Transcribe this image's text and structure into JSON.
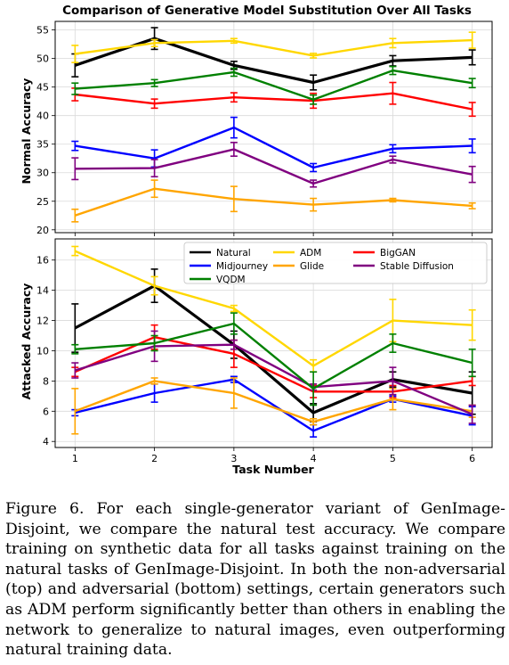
{
  "figure": {
    "title": "Comparison of Generative Model Substitution Over All Tasks",
    "caption": "Figure 6. For each single-generator variant of GenImage-Disjoint, we compare the natural test accuracy. We compare training on synthetic data for all tasks against training on the natural tasks of GenImage-Disjoint. In both the non-adversarial (top) and adversarial (bottom) settings, certain generators such as ADM perform significantly better than others in enabling the network to generalize to natural images, even outperforming natural training data."
  },
  "chart_data": [
    {
      "type": "line",
      "title": "Comparison of Generative Model Substitution Over All Tasks",
      "xlabel": "",
      "ylabel": "Normal Accuracy",
      "x": [
        1,
        2,
        3,
        4,
        5,
        6
      ],
      "xlim": [
        0.75,
        6.25
      ],
      "ylim": [
        19.5,
        56.5
      ],
      "yticks": [
        20,
        25,
        30,
        35,
        40,
        45,
        50,
        55
      ],
      "grid": true,
      "series": [
        {
          "name": "Natural",
          "color": "#000000",
          "values": [
            48.8,
            53.5,
            48.8,
            45.8,
            49.6,
            50.2
          ],
          "err": [
            2.0,
            1.9,
            0.7,
            1.3,
            0.9,
            1.3
          ]
        },
        {
          "name": "ADM",
          "color": "#ffd700",
          "values": [
            50.8,
            52.7,
            53.1,
            50.5,
            52.7,
            53.2
          ],
          "err": [
            1.5,
            0.6,
            0.4,
            0.4,
            0.8,
            1.4
          ]
        },
        {
          "name": "BigGAN",
          "color": "#ff0000",
          "values": [
            43.7,
            42.1,
            43.2,
            42.6,
            43.9,
            41.1
          ],
          "err": [
            1.1,
            0.8,
            0.8,
            1.3,
            1.9,
            1.2
          ]
        },
        {
          "name": "Midjourney",
          "color": "#0000ff",
          "values": [
            34.7,
            32.5,
            37.9,
            30.9,
            34.2,
            34.7
          ],
          "err": [
            0.8,
            1.5,
            1.8,
            0.7,
            0.7,
            1.2
          ]
        },
        {
          "name": "Glide",
          "color": "#ffa500",
          "values": [
            22.5,
            27.2,
            25.4,
            24.4,
            25.2,
            24.2
          ],
          "err": [
            1.1,
            1.5,
            2.2,
            1.1,
            0.3,
            0.5
          ]
        },
        {
          "name": "Stable Diffusion",
          "color": "#800080",
          "values": [
            30.7,
            30.8,
            34.1,
            28.1,
            32.3,
            29.7
          ],
          "err": [
            1.9,
            1.5,
            1.2,
            0.6,
            0.6,
            1.4
          ]
        },
        {
          "name": "VQDM",
          "color": "#008000",
          "values": [
            44.7,
            45.7,
            47.6,
            42.8,
            47.9,
            45.7
          ],
          "err": [
            1.0,
            0.6,
            0.7,
            0.8,
            0.7,
            0.8
          ]
        }
      ]
    },
    {
      "type": "line",
      "title": "",
      "xlabel": "Task Number",
      "ylabel": "Attacked Accuracy",
      "x": [
        1,
        2,
        3,
        4,
        5,
        6
      ],
      "xticks": [
        1,
        2,
        3,
        4,
        5,
        6
      ],
      "xlim": [
        0.75,
        6.25
      ],
      "ylim": [
        3.6,
        17.4
      ],
      "yticks": [
        4,
        6,
        8,
        10,
        12,
        14,
        16
      ],
      "grid": true,
      "legend": {
        "location": "top-right",
        "ncol": 3
      },
      "series": [
        {
          "name": "Natural",
          "color": "#000000",
          "values": [
            11.5,
            14.3,
            10.4,
            5.9,
            8.1,
            7.2
          ],
          "err": [
            1.6,
            1.1,
            0.9,
            0.6,
            0.5,
            1.4
          ]
        },
        {
          "name": "ADM",
          "color": "#ffd700",
          "values": [
            16.6,
            14.3,
            12.8,
            9.0,
            12.0,
            11.7
          ],
          "err": [
            0.3,
            0.6,
            0.2,
            0.4,
            1.4,
            1.0
          ]
        },
        {
          "name": "BigGAN",
          "color": "#ff0000",
          "values": [
            8.6,
            10.9,
            9.8,
            7.3,
            7.3,
            8.0
          ],
          "err": [
            0.3,
            0.8,
            0.9,
            0.4,
            0.4,
            0.3
          ]
        },
        {
          "name": "Midjourney",
          "color": "#0000ff",
          "values": [
            5.9,
            7.2,
            8.1,
            4.7,
            6.8,
            5.7
          ],
          "err": [
            0.2,
            0.6,
            0.2,
            0.4,
            0.2,
            0.6
          ]
        },
        {
          "name": "Glide",
          "color": "#ffa500",
          "values": [
            6.0,
            8.0,
            7.2,
            5.3,
            6.8,
            6.0
          ],
          "err": [
            1.5,
            0.2,
            1.0,
            0.2,
            0.7,
            0.4
          ]
        },
        {
          "name": "Stable Diffusion",
          "color": "#800080",
          "values": [
            8.7,
            10.3,
            10.4,
            7.6,
            8.0,
            5.8
          ],
          "err": [
            0.5,
            1.0,
            0.3,
            0.2,
            0.9,
            0.6
          ]
        },
        {
          "name": "VQDM",
          "color": "#008000",
          "values": [
            10.1,
            10.5,
            11.8,
            7.5,
            10.5,
            9.2
          ],
          "err": [
            0.3,
            0.5,
            0.7,
            1.1,
            0.6,
            0.9
          ]
        }
      ]
    }
  ]
}
